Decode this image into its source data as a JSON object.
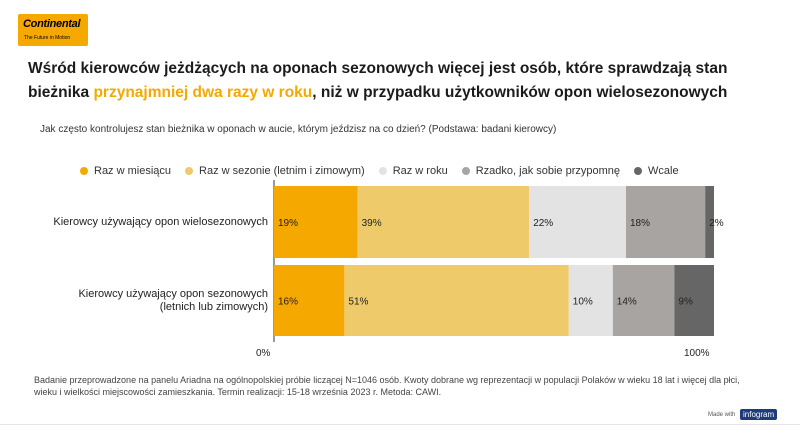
{
  "logo": {
    "brand": "Continental",
    "tagline": "The Future in Motion"
  },
  "title": {
    "part1": "Wśród kierowców jeżdżących na oponach sezonowych więcej jest osób, które sprawdzają stan bieżnika ",
    "highlight": "przynajmniej dwa razy w roku",
    "part2": ", niż w przypadku użytkowników opon wielosezonowych"
  },
  "question": "Jak często kontrolujesz stan bieżnika w oponach w aucie, którym jeździsz na co dzień? (Podstawa: badani kierowcy)",
  "chart_data": {
    "type": "bar",
    "orientation": "horizontal-stacked-100",
    "categories": [
      "Kierowcy używający opon wielosezonowych",
      "Kierowcy używający opon sezonowych (letnich lub zimowych)"
    ],
    "category_lines": [
      [
        "Kierowcy używający opon wielosezonowych"
      ],
      [
        "Kierowcy używający opon sezonowych",
        "(letnich lub zimowych)"
      ]
    ],
    "series": [
      {
        "name": "Raz w miesiącu",
        "color": "#f5a800",
        "values": [
          19,
          16
        ]
      },
      {
        "name": "Raz w sezonie (letnim i zimowym)",
        "color": "#efca6b",
        "values": [
          39,
          51
        ]
      },
      {
        "name": "Raz w roku",
        "color": "#e3e3e3",
        "values": [
          22,
          10
        ]
      },
      {
        "name": "Rzadko, jak sobie przypomnę",
        "color": "#a7a4a2",
        "values": [
          18,
          14
        ]
      },
      {
        "name": "Wcale",
        "color": "#666666",
        "values": [
          2,
          9
        ]
      }
    ],
    "xlim": [
      0,
      100
    ],
    "x_tick_labels": [
      "0%",
      "100%"
    ],
    "value_suffix": "%",
    "legend_position": "top"
  },
  "footnote": "Badanie przeprowadzone na panelu Ariadna na ogólnopolskiej próbie liczącej N=1046 osób. Kwoty dobrane wg reprezentacji w populacji Polaków w wieku 18 lat i więcej dla płci, wieku i wielkości miejscowości zamieszkania. Termin realizacji: 15-18 września 2023 r. Metoda: CAWI.",
  "branding": {
    "made_with": "Made with",
    "infogram": "infogram"
  }
}
